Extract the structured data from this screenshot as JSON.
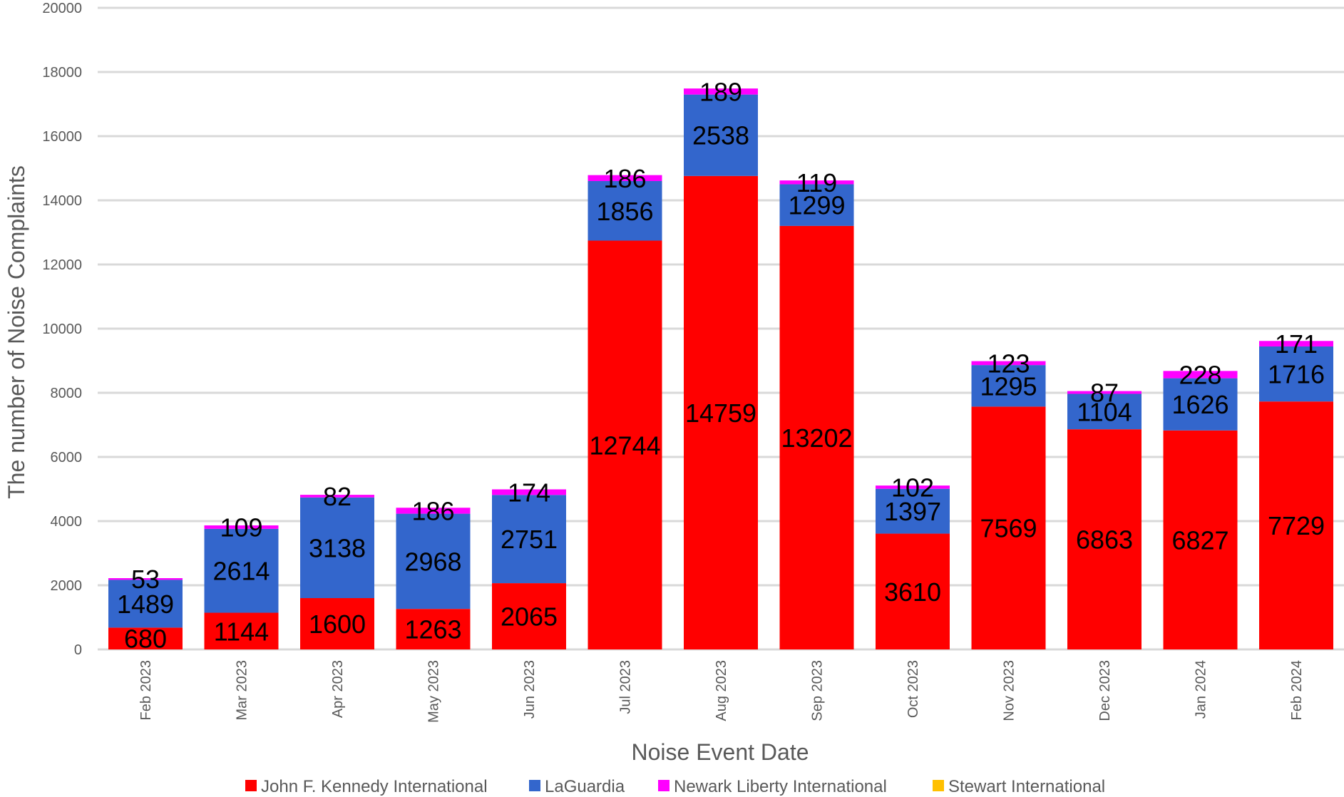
{
  "chart_data": {
    "type": "bar",
    "stacked": true,
    "title": "",
    "xlabel": "Noise Event Date",
    "ylabel": "The number of Noise Complaints",
    "ylim": [
      0,
      20000
    ],
    "yticks": [
      0,
      2000,
      4000,
      6000,
      8000,
      10000,
      12000,
      14000,
      16000,
      18000,
      20000
    ],
    "grid": true,
    "legend_position": "bottom",
    "categories": [
      "Feb 2023",
      "Mar 2023",
      "Apr 2023",
      "May 2023",
      "Jun 2023",
      "Jul 2023",
      "Aug 2023",
      "Sep 2023",
      "Oct 2023",
      "Nov 2023",
      "Dec 2023",
      "Jan 2024",
      "Feb 2024"
    ],
    "series": [
      {
        "name": "John F. Kennedy International",
        "color": "#ff0000",
        "values": [
          680,
          1144,
          1600,
          1263,
          2065,
          12744,
          14759,
          13202,
          3610,
          7569,
          6863,
          6827,
          7729
        ]
      },
      {
        "name": "LaGuardia",
        "color": "#3366cc",
        "values": [
          1489,
          2614,
          3138,
          2968,
          2751,
          1856,
          2538,
          1299,
          1397,
          1295,
          1104,
          1626,
          1716
        ]
      },
      {
        "name": "Newark Liberty International",
        "color": "#ff00ff",
        "values": [
          53,
          109,
          82,
          186,
          174,
          186,
          189,
          119,
          102,
          123,
          87,
          228,
          171
        ]
      },
      {
        "name": "Stewart International",
        "color": "#ffc000",
        "values": [
          0,
          0,
          0,
          0,
          0,
          0,
          0,
          0,
          0,
          0,
          0,
          0,
          0
        ]
      }
    ]
  }
}
